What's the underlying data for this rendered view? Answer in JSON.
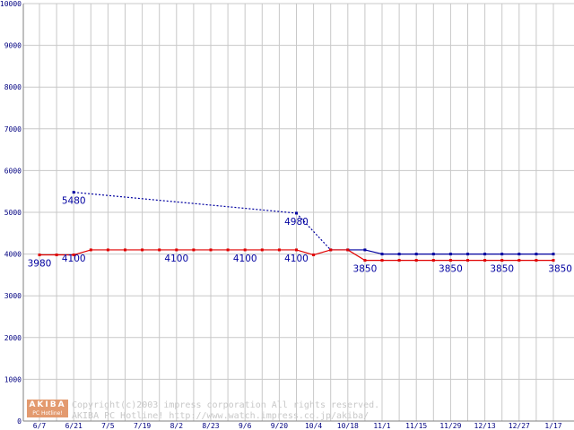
{
  "chart_data": {
    "type": "line",
    "x": [
      "6/7",
      "6/14",
      "6/21",
      "6/28",
      "7/5",
      "7/12",
      "7/19",
      "7/26",
      "8/2",
      "8/9",
      "8/23",
      "8/30",
      "9/6",
      "9/13",
      "9/20",
      "9/27",
      "10/4",
      "10/11",
      "10/18",
      "10/25",
      "11/1",
      "11/8",
      "11/15",
      "11/22",
      "11/29",
      "12/6",
      "12/13",
      "12/20",
      "12/27",
      "1/3",
      "1/17"
    ],
    "x_tick_labels": [
      "6/7",
      "6/21",
      "7/5",
      "7/19",
      "8/2",
      "8/23",
      "9/6",
      "9/20",
      "10/4",
      "10/18",
      "11/1",
      "11/15",
      "11/29",
      "12/13",
      "12/27",
      "1/17"
    ],
    "ylim": [
      0,
      10000
    ],
    "y_ticks": [
      0,
      1000,
      2000,
      3000,
      4000,
      5000,
      6000,
      7000,
      8000,
      9000,
      10000
    ],
    "grid": true,
    "series": [
      {
        "color": "#0000a0",
        "values": [
          null,
          null,
          5480,
          null,
          null,
          null,
          null,
          null,
          null,
          null,
          null,
          null,
          null,
          null,
          null,
          4980,
          null,
          4100,
          4100,
          4100,
          4000,
          4000,
          4000,
          4000,
          4000,
          4000,
          4000,
          4000,
          4000,
          4000,
          4000
        ]
      },
      {
        "color": "#e00000",
        "values": [
          3980,
          3980,
          3980,
          4100,
          4100,
          4100,
          4100,
          4100,
          4100,
          4100,
          4100,
          4100,
          4100,
          4100,
          4100,
          4100,
          3980,
          4100,
          4100,
          3850,
          3850,
          3850,
          3850,
          3850,
          3850,
          3850,
          3850,
          3850,
          3850,
          3850,
          3850
        ]
      }
    ],
    "annotations": [
      {
        "text": "5480",
        "x": "6/21",
        "y": 5480,
        "color": "#0000a0"
      },
      {
        "text": "4980",
        "x": "9/27",
        "y": 4980,
        "color": "#0000a0"
      },
      {
        "text": "3980",
        "x": "6/7",
        "y": 3980,
        "color": "#0000a0"
      },
      {
        "text": "4100",
        "x": "6/21",
        "y": 4100,
        "color": "#0000a0"
      },
      {
        "text": "4100",
        "x": "8/2",
        "y": 4100,
        "color": "#0000a0"
      },
      {
        "text": "4100",
        "x": "9/6",
        "y": 4100,
        "color": "#0000a0"
      },
      {
        "text": "4100",
        "x": "9/27",
        "y": 4100,
        "color": "#0000a0"
      },
      {
        "text": "3850",
        "x": "10/25",
        "y": 3850,
        "color": "#0000a0"
      },
      {
        "text": "3850",
        "x": "11/29",
        "y": 3850,
        "color": "#0000a0"
      },
      {
        "text": "3850",
        "x": "12/20",
        "y": 3850,
        "color": "#0000a0"
      },
      {
        "text": "3850",
        "x": "1/17",
        "y": 3850,
        "color": "#0000a0"
      }
    ]
  },
  "watermark": {
    "line1": "Copyright(c)2003 impress corporation All rights reserved.",
    "line2": "AKIBA PC Hotline!  http://www.watch.impress.co.jp/akiba/",
    "logo_top": "AKIBA",
    "logo_bottom": "PC Hotline!"
  },
  "colors": {
    "grid": "#c8c8c8",
    "axis_text": "#000080",
    "watermark": "#c8c8c8",
    "logo": "#e39a6f"
  }
}
